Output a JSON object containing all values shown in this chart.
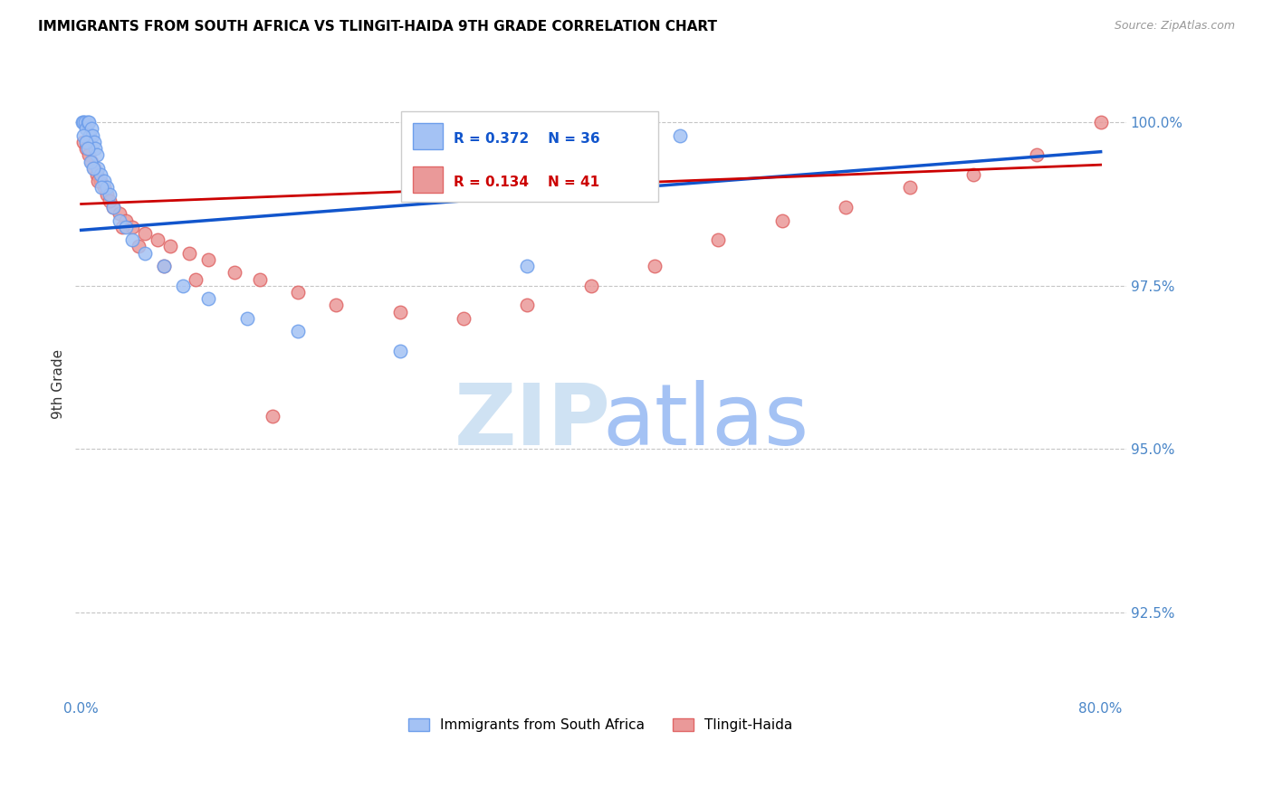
{
  "title": "IMMIGRANTS FROM SOUTH AFRICA VS TLINGIT-HAIDA 9TH GRADE CORRELATION CHART",
  "source_text": "Source: ZipAtlas.com",
  "ylabel": "9th Grade",
  "y_min": 91.2,
  "y_max": 100.8,
  "x_min": -0.5,
  "x_max": 82.0,
  "legend_blue_r": "0.372",
  "legend_blue_n": "36",
  "legend_pink_r": "0.134",
  "legend_pink_n": "41",
  "legend_label_blue": "Immigrants from South Africa",
  "legend_label_pink": "Tlingit-Haida",
  "blue_color": "#a4c2f4",
  "pink_color": "#ea9999",
  "blue_edge_color": "#6d9eeb",
  "pink_edge_color": "#e06666",
  "blue_line_color": "#1155cc",
  "pink_line_color": "#cc0000",
  "axis_label_color": "#4a86c8",
  "grid_color": "#b7b7b7",
  "background_color": "#ffffff",
  "watermark_zip_color": "#cfe2f3",
  "watermark_atlas_color": "#a4c2f4",
  "blue_scatter_x": [
    0.1,
    0.2,
    0.3,
    0.4,
    0.5,
    0.6,
    0.7,
    0.8,
    0.9,
    1.0,
    1.1,
    1.2,
    1.3,
    1.5,
    1.8,
    2.0,
    2.2,
    2.5,
    3.0,
    3.5,
    4.0,
    5.0,
    6.5,
    8.0,
    10.0,
    13.0,
    17.0,
    25.0,
    35.0,
    47.0,
    0.15,
    0.35,
    0.55,
    0.75,
    0.95,
    1.6
  ],
  "blue_scatter_y": [
    100.0,
    100.0,
    100.0,
    99.9,
    100.0,
    100.0,
    99.8,
    99.9,
    99.8,
    99.7,
    99.6,
    99.5,
    99.3,
    99.2,
    99.1,
    99.0,
    98.9,
    98.7,
    98.5,
    98.4,
    98.2,
    98.0,
    97.8,
    97.5,
    97.3,
    97.0,
    96.8,
    96.5,
    97.8,
    99.8,
    99.8,
    99.7,
    99.6,
    99.4,
    99.3,
    99.0
  ],
  "pink_scatter_x": [
    0.2,
    0.4,
    0.6,
    0.8,
    1.0,
    1.2,
    1.5,
    1.8,
    2.0,
    2.5,
    3.0,
    3.5,
    4.0,
    5.0,
    6.0,
    7.0,
    8.5,
    10.0,
    12.0,
    14.0,
    17.0,
    20.0,
    25.0,
    30.0,
    35.0,
    40.0,
    45.0,
    50.0,
    55.0,
    60.0,
    65.0,
    70.0,
    75.0,
    80.0,
    1.3,
    2.2,
    3.2,
    4.5,
    6.5,
    9.0,
    15.0
  ],
  "pink_scatter_y": [
    99.7,
    99.6,
    99.5,
    99.4,
    99.3,
    99.2,
    99.1,
    99.0,
    98.9,
    98.7,
    98.6,
    98.5,
    98.4,
    98.3,
    98.2,
    98.1,
    98.0,
    97.9,
    97.7,
    97.6,
    97.4,
    97.2,
    97.1,
    97.0,
    97.2,
    97.5,
    97.8,
    98.2,
    98.5,
    98.7,
    99.0,
    99.2,
    99.5,
    100.0,
    99.1,
    98.8,
    98.4,
    98.1,
    97.8,
    97.6,
    95.5
  ],
  "blue_line_x0": 0.0,
  "blue_line_y0": 98.35,
  "blue_line_x1": 80.0,
  "blue_line_y1": 99.55,
  "pink_line_x0": 0.0,
  "pink_line_y0": 98.75,
  "pink_line_x1": 80.0,
  "pink_line_y1": 99.35
}
